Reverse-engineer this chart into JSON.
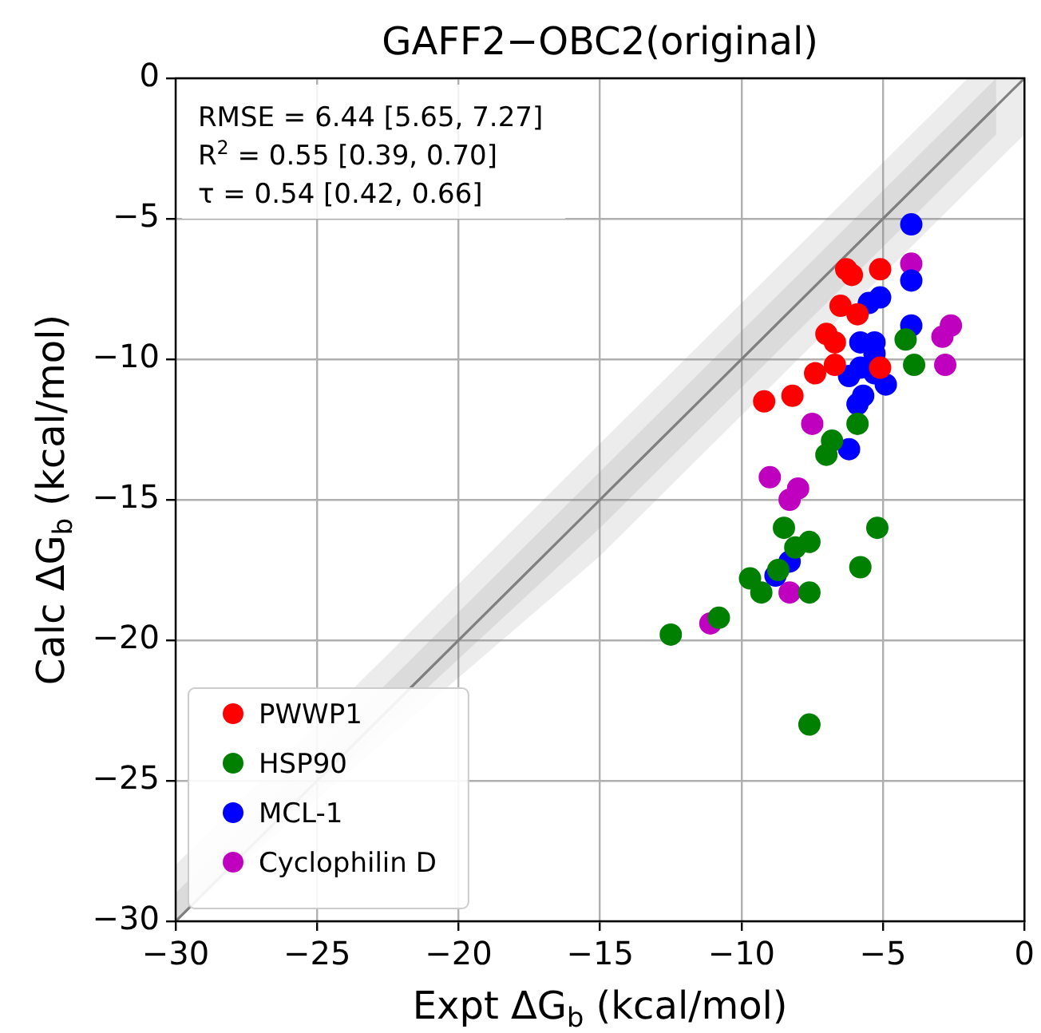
{
  "chart_data": {
    "type": "scatter",
    "title": "GAFF2−OBC2(original)",
    "xlabel": "Expt ΔG$_{b}$ (kcal/mol)",
    "ylabel": "Calc ΔG$_{b}$ (kcal/mol)",
    "xlim": [
      -30,
      0
    ],
    "ylim": [
      -30,
      0
    ],
    "xticks": [
      -30,
      -25,
      -20,
      -15,
      -10,
      -5,
      0
    ],
    "yticks": [
      -30,
      -25,
      -20,
      -15,
      -10,
      -5,
      0
    ],
    "grid": true,
    "legend": "bottom left",
    "marker": "circle",
    "annotations": [
      "RMSE = 6.44 [5.65, 7.27]",
      "R$^{2}$ = 0.55 [0.39, 0.70]",
      "τ = 0.54 [0.42, 0.66]"
    ],
    "series": [
      {
        "type": "line",
        "marker": "none",
        "color": "#808080",
        "x": [
          -30,
          -15,
          -2,
          0
        ],
        "values": [
          -30,
          -15,
          -2,
          0
        ],
        "lower": [
          -30,
          -17,
          -4,
          -2
        ],
        "upper": [
          -28,
          -13,
          0,
          0
        ]
      },
      {
        "type": "line",
        "marker": "none",
        "color": "#808080",
        "x": [
          -30,
          -15,
          -1
        ],
        "values": [
          -30,
          -15,
          -1
        ],
        "lower": [
          -30,
          -16,
          -2
        ],
        "upper": [
          -29,
          -14,
          0
        ]
      },
      {
        "name": "PWWP1",
        "color": "#ff0000",
        "x": [
          -6.3,
          -6.1,
          -5.1,
          -6.5,
          -5.9,
          -7.0,
          -6.7,
          -6.7,
          -7.4,
          -5.1,
          -8.2,
          -9.2
        ],
        "values": [
          -6.8,
          -7.0,
          -6.8,
          -8.1,
          -8.4,
          -9.1,
          -9.4,
          -10.2,
          -10.5,
          -10.3,
          -11.3,
          -11.5
        ]
      },
      {
        "name": "HSP90",
        "color": "#008000",
        "x": [
          -4.2,
          -3.9,
          -5.9,
          -6.8,
          -7.0,
          -8.5,
          -5.2,
          -7.6,
          -8.1,
          -5.8,
          -9.7,
          -9.3,
          -7.6,
          -8.7,
          -10.8,
          -12.5,
          -7.6
        ],
        "values": [
          -9.3,
          -10.2,
          -12.3,
          -12.9,
          -13.4,
          -16.0,
          -16.0,
          -16.5,
          -16.7,
          -17.4,
          -17.8,
          -18.3,
          -18.3,
          -17.5,
          -19.2,
          -19.8,
          -23.0
        ]
      },
      {
        "name": "MCL-1",
        "color": "#0000ff",
        "x": [
          -4.0,
          -4.0,
          -5.1,
          -5.5,
          -4.0,
          -5.8,
          -5.3,
          -5.3,
          -5.8,
          -6.2,
          -5.3,
          -4.9,
          -5.7,
          -5.9,
          -6.2,
          -8.3,
          -8.8
        ],
        "values": [
          -5.2,
          -7.2,
          -7.8,
          -8.0,
          -8.8,
          -9.4,
          -9.4,
          -9.8,
          -10.3,
          -10.6,
          -10.5,
          -10.9,
          -11.3,
          -11.6,
          -13.2,
          -17.2,
          -17.7
        ]
      },
      {
        "name": "Cyclophilin D",
        "color": "#bf00bf",
        "x": [
          -4.0,
          -2.6,
          -2.9,
          -2.8,
          -7.5,
          -9.0,
          -8.0,
          -8.3,
          -8.3,
          -11.1
        ],
        "values": [
          -6.6,
          -8.8,
          -9.2,
          -10.2,
          -12.3,
          -14.2,
          -14.6,
          -15.0,
          -18.3,
          -19.4
        ]
      }
    ]
  }
}
